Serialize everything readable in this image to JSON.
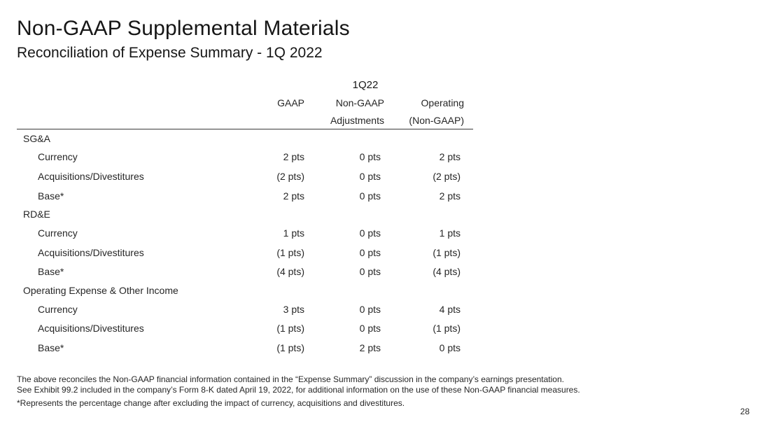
{
  "title": "Non-GAAP Supplemental Materials",
  "subtitle": "Reconciliation of Expense Summary - 1Q 2022",
  "period": "1Q22",
  "columns": {
    "gaap": "GAAP",
    "adj_line1": "Non-GAAP",
    "adj_line2": "Adjustments",
    "op_line1": "Operating",
    "op_line2": "(Non-GAAP)"
  },
  "sections": [
    {
      "name": "SG&A",
      "rows": [
        {
          "label": "Currency",
          "gaap": "2 pts",
          "adj": "0 pts",
          "op": "2 pts"
        },
        {
          "label": "Acquisitions/Divestitures",
          "gaap": "(2 pts)",
          "adj": "0 pts",
          "op": "(2 pts)"
        },
        {
          "label": "Base*",
          "gaap": "2 pts",
          "adj": "0 pts",
          "op": "2 pts"
        }
      ]
    },
    {
      "name": "RD&E",
      "rows": [
        {
          "label": "Currency",
          "gaap": "1 pts",
          "adj": "0 pts",
          "op": "1 pts"
        },
        {
          "label": "Acquisitions/Divestitures",
          "gaap": "(1 pts)",
          "adj": "0 pts",
          "op": "(1 pts)"
        },
        {
          "label": "Base*",
          "gaap": "(4 pts)",
          "adj": "0 pts",
          "op": "(4 pts)"
        }
      ]
    },
    {
      "name": "Operating Expense & Other Income",
      "rows": [
        {
          "label": "Currency",
          "gaap": "3 pts",
          "adj": "0 pts",
          "op": "4 pts"
        },
        {
          "label": "Acquisitions/Divestitures",
          "gaap": "(1 pts)",
          "adj": "0 pts",
          "op": "(1 pts)"
        },
        {
          "label": "Base*",
          "gaap": "(1 pts)",
          "adj": "2 pts",
          "op": "0 pts"
        }
      ]
    }
  ],
  "footnotes": {
    "line1": "The above reconciles the Non-GAAP financial information contained in the “Expense Summary” discussion in the company’s earnings presentation.",
    "line2": "See Exhibit 99.2 included in the company’s Form 8-K dated April 19, 2022, for additional information on the use of these Non-GAAP financial measures.",
    "line3": "*Represents the percentage change after excluding the impact of currency, acquisitions and divestitures."
  },
  "page_number": "28"
}
